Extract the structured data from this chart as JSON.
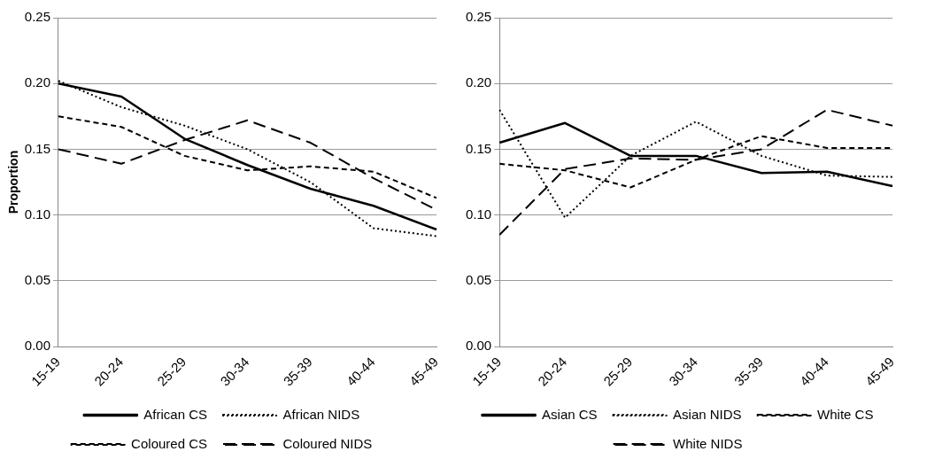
{
  "chart_data": [
    {
      "type": "line",
      "ylabel": "Proportion",
      "categories": [
        "15-19",
        "20-24",
        "25-29",
        "30-34",
        "35-39",
        "40-44",
        "45-49"
      ],
      "ylim": [
        0,
        0.25
      ],
      "yticks": [
        {
          "value": 0,
          "label": "0.00"
        },
        {
          "value": 0.05,
          "label": "0.05"
        },
        {
          "value": 0.1,
          "label": "0.10"
        },
        {
          "value": 0.15,
          "label": "0.15"
        },
        {
          "value": 0.2,
          "label": "0.20"
        },
        {
          "value": 0.25,
          "label": "0.25"
        }
      ],
      "grid": "y",
      "legend": "bottom",
      "marker": "none",
      "series": [
        {
          "name": "African CS",
          "color": "#000000",
          "line_style": "solid",
          "values": [
            0.2,
            0.19,
            0.158,
            0.138,
            0.12,
            0.107,
            0.089
          ]
        },
        {
          "name": "African NIDS",
          "color": "#000000",
          "line_style": "dotted",
          "values": [
            0.202,
            0.182,
            0.168,
            0.15,
            0.125,
            0.09,
            0.084
          ]
        },
        {
          "name": "Coloured CS",
          "color": "#000000",
          "line_style": "dashed",
          "values": [
            0.175,
            0.167,
            0.145,
            0.134,
            0.137,
            0.133,
            0.113
          ]
        },
        {
          "name": "Coloured NIDS",
          "color": "#000000",
          "line_style": "dashed",
          "values": [
            0.15,
            0.139,
            0.157,
            0.172,
            0.155,
            0.128,
            0.104
          ]
        }
      ]
    },
    {
      "type": "line",
      "categories": [
        "15-19",
        "20-24",
        "25-29",
        "30-34",
        "35-39",
        "40-44",
        "45-49"
      ],
      "ylim": [
        0,
        0.25
      ],
      "yticks": [
        {
          "value": 0,
          "label": "0.00"
        },
        {
          "value": 0.05,
          "label": "0.05"
        },
        {
          "value": 0.1,
          "label": "0.10"
        },
        {
          "value": 0.15,
          "label": "0.15"
        },
        {
          "value": 0.2,
          "label": "0.20"
        },
        {
          "value": 0.25,
          "label": "0.25"
        }
      ],
      "grid": "y",
      "legend": "bottom",
      "marker": "none",
      "series": [
        {
          "name": "Asian CS",
          "color": "#000000",
          "line_style": "solid",
          "values": [
            0.155,
            0.17,
            0.145,
            0.145,
            0.132,
            0.133,
            0.122
          ]
        },
        {
          "name": "Asian NIDS",
          "color": "#000000",
          "line_style": "dotted",
          "values": [
            0.18,
            0.098,
            0.145,
            0.171,
            0.145,
            0.13,
            0.129
          ]
        },
        {
          "name": "White CS",
          "color": "#000000",
          "line_style": "dashed",
          "values": [
            0.139,
            0.134,
            0.121,
            0.142,
            0.16,
            0.151,
            0.151
          ]
        },
        {
          "name": "White NIDS",
          "color": "#000000",
          "line_style": "dashed",
          "values": [
            0.085,
            0.135,
            0.143,
            0.142,
            0.15,
            0.18,
            0.168
          ]
        }
      ]
    }
  ]
}
